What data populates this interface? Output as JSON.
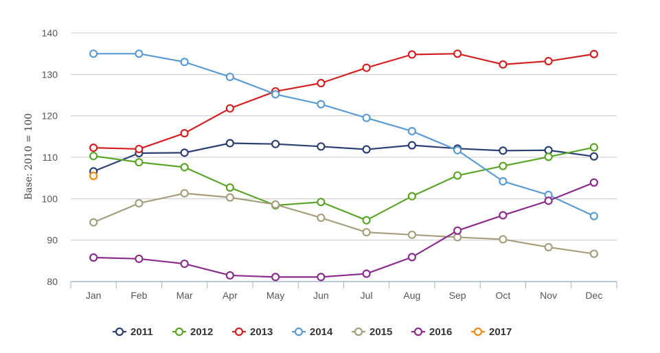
{
  "chart_data": {
    "type": "line",
    "categories": [
      "Jan",
      "Feb",
      "Mar",
      "Apr",
      "May",
      "Jun",
      "Jul",
      "Aug",
      "Sep",
      "Oct",
      "Nov",
      "Dec"
    ],
    "ylabel": "Base: 2010 = 100",
    "ylim": [
      80,
      140
    ],
    "yticks": [
      80,
      90,
      100,
      110,
      120,
      130,
      140
    ],
    "grid": true,
    "legend": "bottom-center",
    "series": [
      {
        "name": "2011",
        "color": "#2b3f73",
        "values": [
          106.6,
          111.0,
          111.1,
          113.4,
          113.2,
          112.6,
          111.9,
          112.9,
          112.1,
          111.6,
          111.7,
          110.2
        ]
      },
      {
        "name": "2012",
        "color": "#5aa528",
        "values": [
          110.3,
          108.8,
          107.6,
          102.7,
          98.4,
          99.2,
          94.8,
          100.6,
          105.6,
          107.9,
          110.1,
          112.4
        ]
      },
      {
        "name": "2013",
        "color": "#d32020",
        "values": [
          112.3,
          112.0,
          115.8,
          121.8,
          125.9,
          127.9,
          131.6,
          134.8,
          135.0,
          132.4,
          133.2,
          134.9
        ]
      },
      {
        "name": "2014",
        "color": "#5b9bd3",
        "values": [
          135.0,
          135.0,
          133.0,
          129.4,
          125.2,
          122.8,
          119.5,
          116.3,
          111.7,
          104.2,
          100.9,
          95.8
        ]
      },
      {
        "name": "2015",
        "color": "#a59f7d",
        "values": [
          94.3,
          98.9,
          101.3,
          100.3,
          98.6,
          95.4,
          91.9,
          91.3,
          90.7,
          90.2,
          88.3,
          86.7
        ]
      },
      {
        "name": "2016",
        "color": "#8a2c8c",
        "values": [
          85.8,
          85.5,
          84.3,
          81.5,
          81.1,
          81.1,
          81.9,
          85.9,
          92.3,
          96.0,
          99.5,
          103.9
        ]
      },
      {
        "name": "2017",
        "color": "#f08a0c",
        "values": [
          105.5,
          null,
          null,
          null,
          null,
          null,
          null,
          null,
          null,
          null,
          null,
          null
        ]
      }
    ]
  }
}
